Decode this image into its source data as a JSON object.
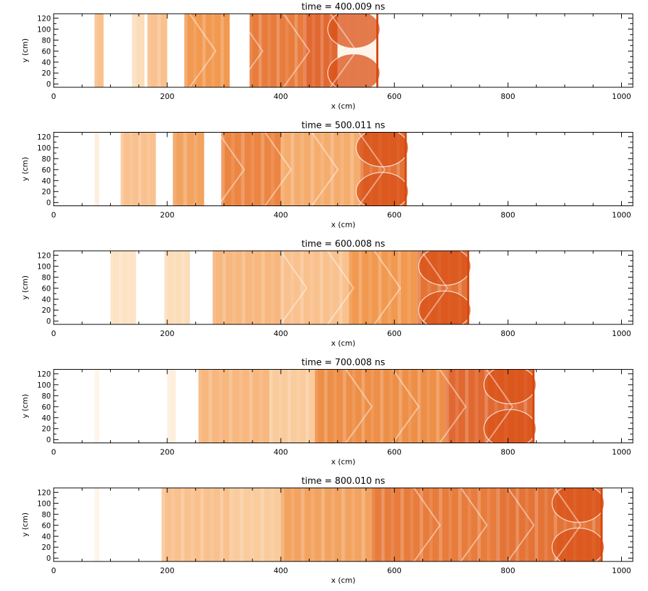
{
  "accent_color": "#E8701E",
  "chart_data": [
    {
      "type": "heatmap",
      "title": "time =    400.009 ns",
      "xlabel": "x (cm)",
      "ylabel": "y (cm)",
      "xlim": [
        0,
        1020
      ],
      "ylim": [
        -6,
        128
      ],
      "x_ticks": [
        0,
        200,
        400,
        600,
        800,
        1000
      ],
      "y_ticks": [
        0,
        20,
        40,
        60,
        80,
        100,
        120
      ],
      "colormap": "white-orange-red",
      "shock_front_x": 570,
      "field": [
        {
          "x0": 72,
          "x1": 88,
          "level": 0.45
        },
        {
          "x0": 138,
          "x1": 160,
          "level": 0.3
        },
        {
          "x0": 165,
          "x1": 200,
          "level": 0.45
        },
        {
          "x0": 230,
          "x1": 310,
          "level": 0.65
        },
        {
          "x0": 345,
          "x1": 440,
          "level": 0.8
        },
        {
          "x0": 440,
          "x1": 500,
          "level": 0.9
        },
        {
          "x0": 500,
          "x1": 570,
          "level": 0.1
        }
      ]
    },
    {
      "type": "heatmap",
      "title": "time =    500.011 ns",
      "xlabel": "x (cm)",
      "ylabel": "y (cm)",
      "xlim": [
        0,
        1020
      ],
      "ylim": [
        -6,
        128
      ],
      "x_ticks": [
        0,
        200,
        400,
        600,
        800,
        1000
      ],
      "y_ticks": [
        0,
        20,
        40,
        60,
        80,
        100,
        120
      ],
      "colormap": "white-orange-red",
      "shock_front_x": 620,
      "field": [
        {
          "x0": 72,
          "x1": 80,
          "level": 0.15
        },
        {
          "x0": 118,
          "x1": 180,
          "level": 0.45
        },
        {
          "x0": 210,
          "x1": 265,
          "level": 0.6
        },
        {
          "x0": 295,
          "x1": 400,
          "level": 0.75
        },
        {
          "x0": 400,
          "x1": 540,
          "level": 0.55
        },
        {
          "x0": 540,
          "x1": 620,
          "level": 0.85
        }
      ]
    },
    {
      "type": "heatmap",
      "title": "time =    600.008 ns",
      "xlabel": "x (cm)",
      "ylabel": "y (cm)",
      "xlim": [
        0,
        1020
      ],
      "ylim": [
        -6,
        128
      ],
      "x_ticks": [
        0,
        200,
        400,
        600,
        800,
        1000
      ],
      "y_ticks": [
        0,
        20,
        40,
        60,
        80,
        100,
        120
      ],
      "colormap": "white-orange-red",
      "shock_front_x": 730,
      "field": [
        {
          "x0": 100,
          "x1": 145,
          "level": 0.25
        },
        {
          "x0": 195,
          "x1": 240,
          "level": 0.3
        },
        {
          "x0": 280,
          "x1": 400,
          "level": 0.5
        },
        {
          "x0": 400,
          "x1": 520,
          "level": 0.45
        },
        {
          "x0": 520,
          "x1": 640,
          "level": 0.65
        },
        {
          "x0": 640,
          "x1": 730,
          "level": 0.85
        }
      ]
    },
    {
      "type": "heatmap",
      "title": "time =    700.008 ns",
      "xlabel": "x (cm)",
      "ylabel": "y (cm)",
      "xlim": [
        0,
        1020
      ],
      "ylim": [
        -6,
        128
      ],
      "x_ticks": [
        0,
        200,
        400,
        600,
        800,
        1000
      ],
      "y_ticks": [
        0,
        20,
        40,
        60,
        80,
        100,
        120
      ],
      "colormap": "white-orange-red",
      "shock_front_x": 845,
      "field": [
        {
          "x0": 72,
          "x1": 80,
          "level": 0.1
        },
        {
          "x0": 200,
          "x1": 215,
          "level": 0.15
        },
        {
          "x0": 255,
          "x1": 380,
          "level": 0.5
        },
        {
          "x0": 380,
          "x1": 460,
          "level": 0.4
        },
        {
          "x0": 460,
          "x1": 690,
          "level": 0.7
        },
        {
          "x0": 690,
          "x1": 845,
          "level": 0.9
        }
      ]
    },
    {
      "type": "heatmap",
      "title": "time =    800.010 ns",
      "xlabel": "x (cm)",
      "ylabel": "y (cm)",
      "xlim": [
        0,
        1020
      ],
      "ylim": [
        -6,
        128
      ],
      "x_ticks": [
        0,
        200,
        400,
        600,
        800,
        1000
      ],
      "y_ticks": [
        0,
        20,
        40,
        60,
        80,
        100,
        120
      ],
      "colormap": "white-orange-red",
      "shock_front_x": 965,
      "field": [
        {
          "x0": 72,
          "x1": 80,
          "level": 0.1
        },
        {
          "x0": 190,
          "x1": 310,
          "level": 0.45
        },
        {
          "x0": 310,
          "x1": 400,
          "level": 0.4
        },
        {
          "x0": 400,
          "x1": 560,
          "level": 0.6
        },
        {
          "x0": 560,
          "x1": 780,
          "level": 0.8
        },
        {
          "x0": 780,
          "x1": 965,
          "level": 0.85
        }
      ]
    }
  ]
}
